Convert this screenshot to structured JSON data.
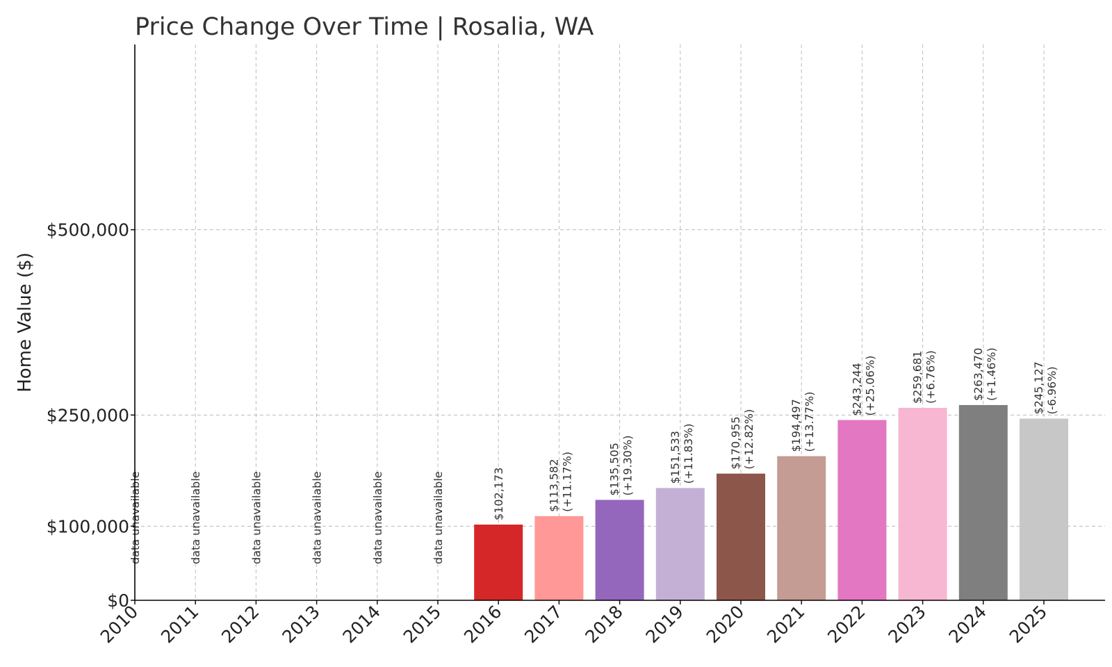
{
  "chart_data": {
    "type": "bar",
    "title": "Price Change Over Time | Rosalia, WA",
    "xlabel": "",
    "ylabel": "Home Value ($)",
    "ylim": [
      0,
      750000
    ],
    "y_ticks": [
      {
        "value": 0,
        "label": "$0"
      },
      {
        "value": 100000,
        "label": "$100,000"
      },
      {
        "value": 250000,
        "label": "$250,000"
      },
      {
        "value": 500000,
        "label": "$500,000"
      }
    ],
    "grid": true,
    "categories": [
      "2010",
      "2011",
      "2012",
      "2013",
      "2014",
      "2015",
      "2016",
      "2017",
      "2018",
      "2019",
      "2020",
      "2021",
      "2022",
      "2023",
      "2024",
      "2025"
    ],
    "values": [
      null,
      null,
      null,
      null,
      null,
      null,
      102173,
      113582,
      135505,
      151533,
      170955,
      194497,
      243244,
      259681,
      263470,
      245127
    ],
    "value_labels": [
      "",
      "",
      "",
      "",
      "",
      "",
      "$102,173",
      "$113,582",
      "$135,505",
      "$151,533",
      "$170,955",
      "$194,497",
      "$243,244",
      "$259,681",
      "$263,470",
      "$245,127"
    ],
    "change_labels": [
      "",
      "",
      "",
      "",
      "",
      "",
      "",
      "(+11.17%)",
      "(+19.30%)",
      "(+11.83%)",
      "(+12.82%)",
      "(+13.77%)",
      "(+25.06%)",
      "(+6.76%)",
      "(+1.46%)",
      "(-6.96%)"
    ],
    "unavailable_label": "data unavailable",
    "colors": [
      "#d62728",
      "#d62728",
      "#d62728",
      "#d62728",
      "#d62728",
      "#d62728",
      "#d62728",
      "#ff9896",
      "#9467bd",
      "#c5b0d5",
      "#8c564b",
      "#c49c94",
      "#e377c2",
      "#f7b6d2",
      "#7f7f7f",
      "#c7c7c7"
    ]
  }
}
